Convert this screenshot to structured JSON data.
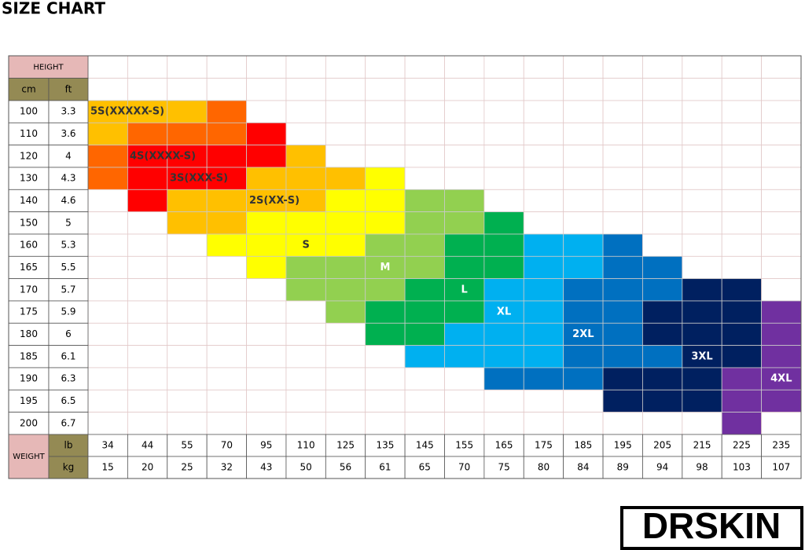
{
  "title": "SIZE CHART",
  "table": {
    "height_header": "HEIGHT",
    "cm_header": "cm",
    "ft_header": "ft",
    "weight_header": "WEIGHT",
    "lb_header": "lb",
    "kg_header": "kg",
    "heights": [
      [
        100,
        3.3
      ],
      [
        110,
        3.6
      ],
      [
        120,
        4
      ],
      [
        130,
        4.3
      ],
      [
        140,
        4.6
      ],
      [
        150,
        5
      ],
      [
        160,
        5.3
      ],
      [
        165,
        5.5
      ],
      [
        170,
        5.7
      ],
      [
        175,
        5.9
      ],
      [
        180,
        6
      ],
      [
        185,
        6.1
      ],
      [
        190,
        6.3
      ],
      [
        195,
        6.5
      ],
      [
        200,
        6.7
      ]
    ],
    "lb": [
      34,
      44,
      55,
      70,
      95,
      110,
      125,
      135,
      145,
      155,
      165,
      175,
      185,
      195,
      205,
      215,
      225,
      235
    ],
    "kg": [
      15,
      20,
      25,
      32,
      43,
      50,
      56,
      61,
      65,
      70,
      75,
      80,
      84,
      89,
      94,
      98,
      103,
      107
    ],
    "sizes": [
      "5S(XXXXX-S)",
      "4S(XXXX-S)",
      "3S(XXX-S)",
      "2S(XX-S)",
      "S",
      "M",
      "L",
      "XL",
      "2XL",
      "3XL",
      "4XL"
    ]
  },
  "logo": "DRSKIN"
}
